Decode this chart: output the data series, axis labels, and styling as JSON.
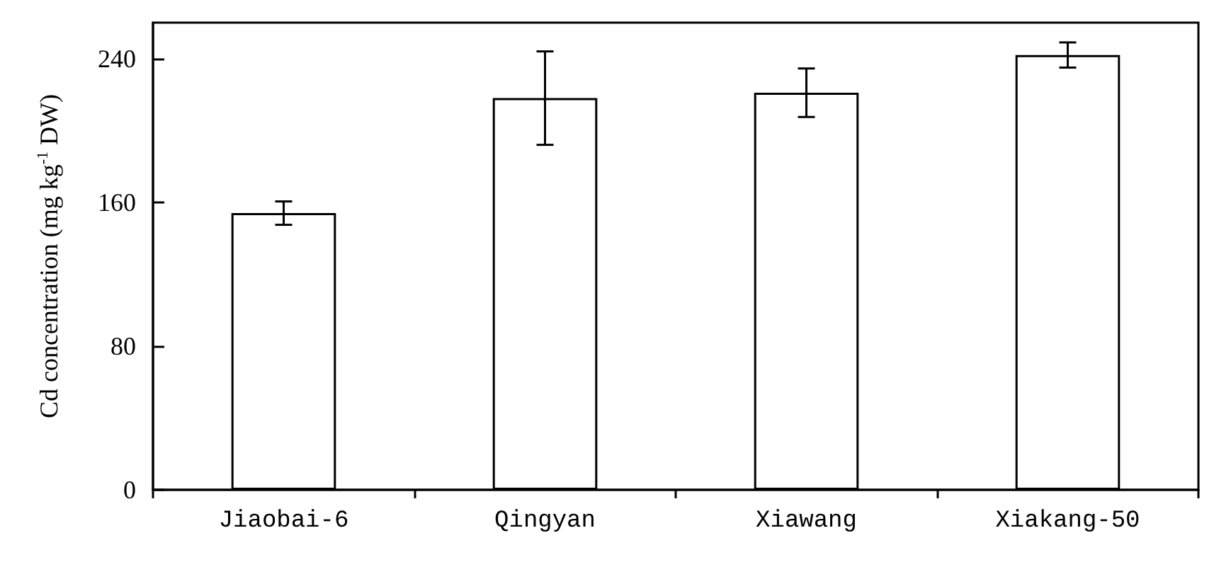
{
  "chart_data": {
    "type": "bar",
    "ylabel": "Cd concentration (mg kg$^{-1}$ DW)",
    "categories": [
      "Jiaobai-6",
      "Qingyan",
      "Xiawang",
      "Xiakang-50"
    ],
    "values": [
      154,
      218,
      221,
      242
    ],
    "errors": [
      6.5,
      26,
      13.5,
      7
    ],
    "color": "#ffffff",
    "ylim": [
      0,
      260
    ],
    "yticks": [
      0,
      80,
      160,
      240
    ],
    "grid": false
  }
}
